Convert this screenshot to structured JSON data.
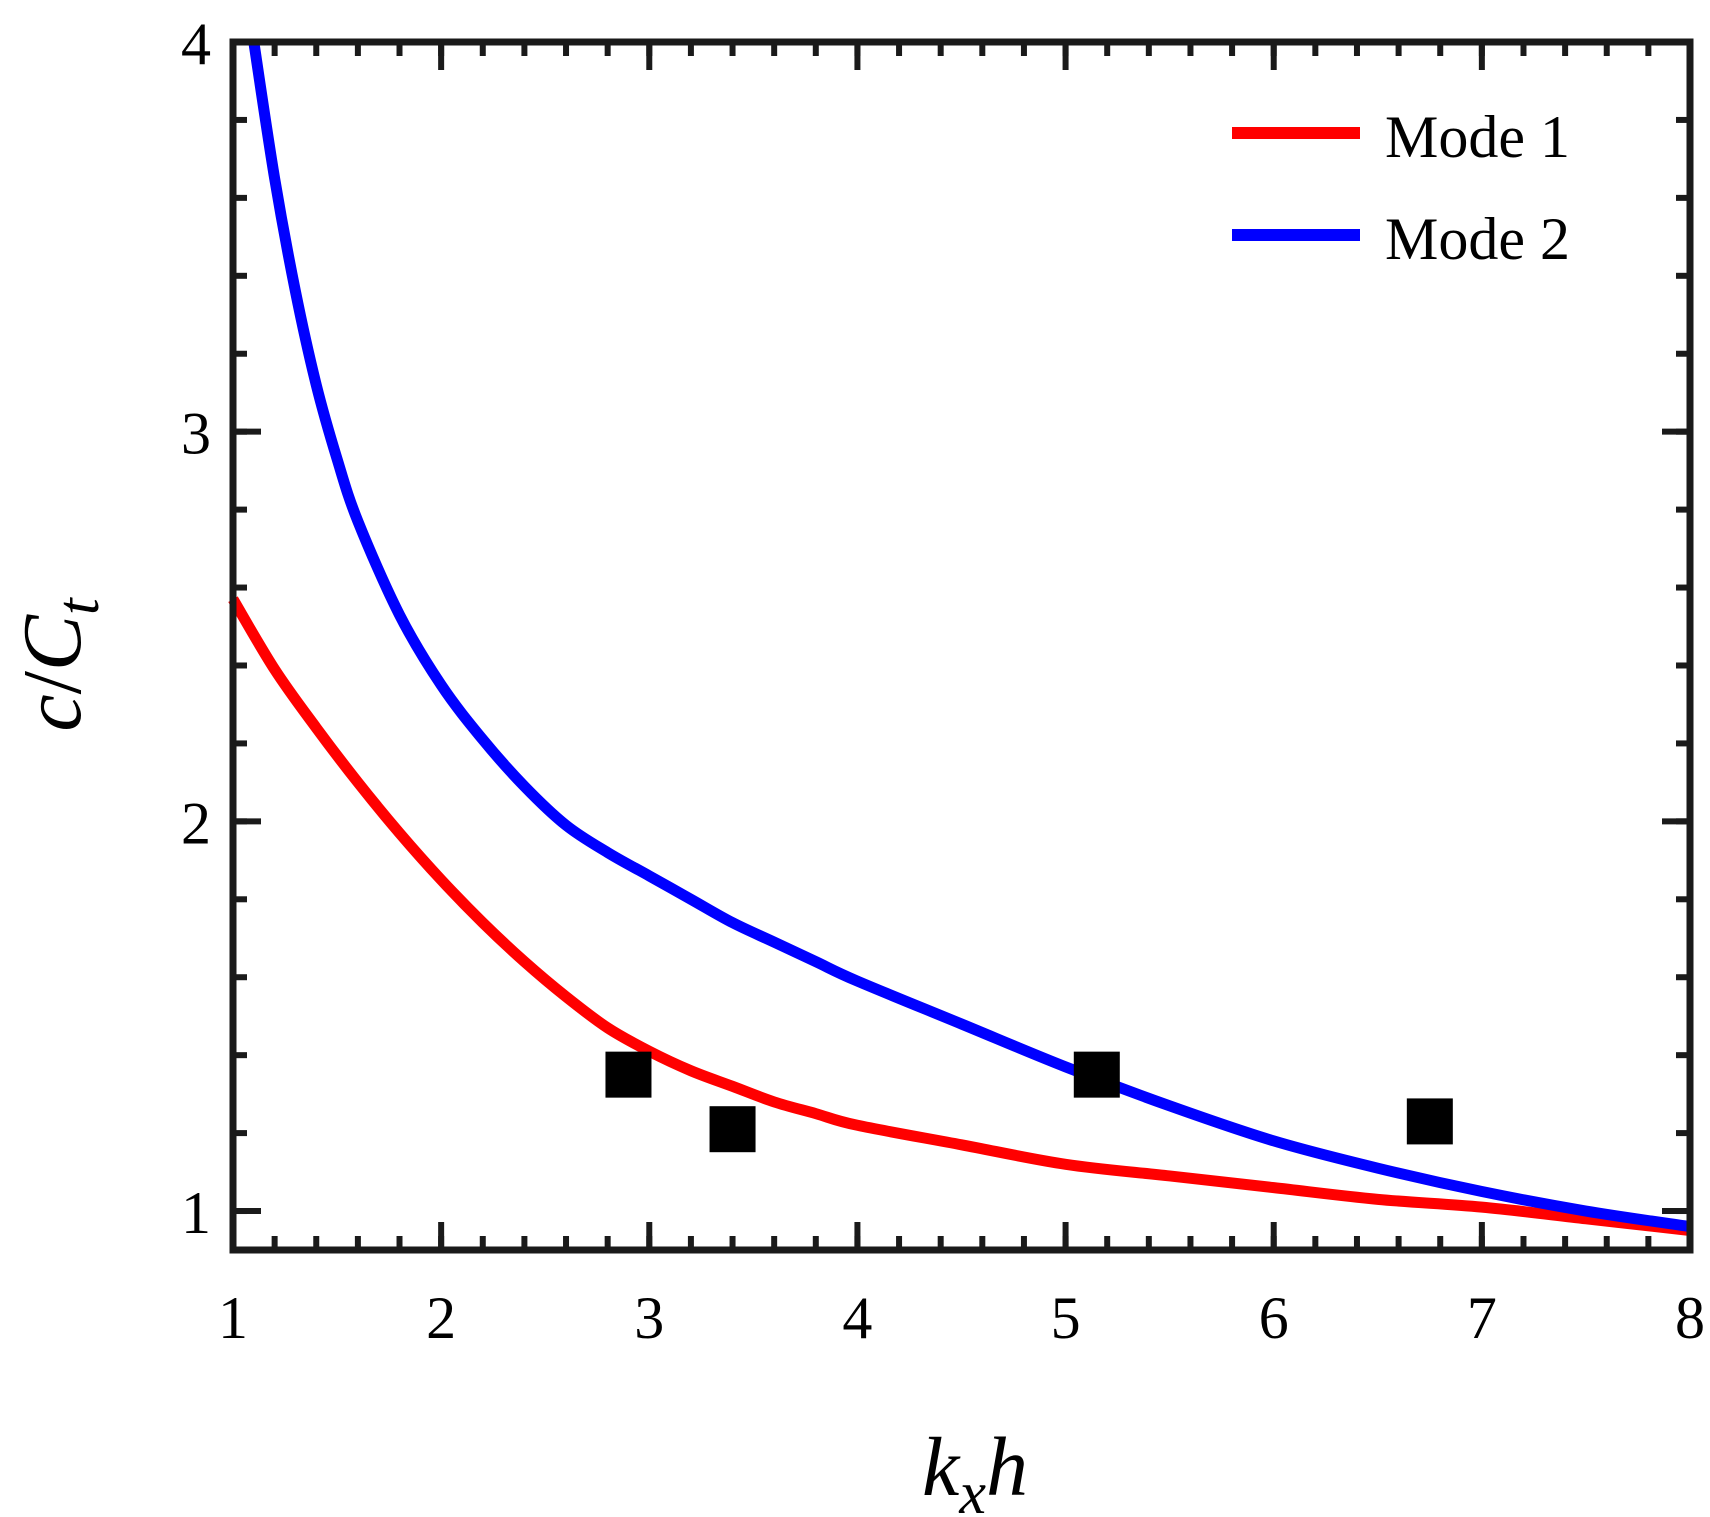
{
  "chart_data": {
    "type": "line",
    "title": "",
    "xlabel": {
      "main": "k",
      "sub": "x",
      "tail": "h"
    },
    "ylabel": {
      "main": "c",
      "slash": "/",
      "C": "C",
      "sub": "t"
    },
    "xlim": [
      1,
      8
    ],
    "ylim": [
      0.9,
      4
    ],
    "x_ticks": [
      1,
      2,
      3,
      4,
      5,
      6,
      7,
      8
    ],
    "y_ticks": [
      1,
      2,
      3,
      4
    ],
    "x_minor_step": 0.2,
    "y_minor_step": 0.2,
    "grid": false,
    "legend_position": "top-right",
    "series": [
      {
        "name": "Mode 1",
        "color": "#ff0000",
        "x": [
          1.0,
          1.2,
          1.4,
          1.6,
          1.8,
          2.0,
          2.2,
          2.4,
          2.6,
          2.8,
          3.0,
          3.2,
          3.4,
          3.6,
          3.8,
          4.0,
          4.5,
          5.0,
          5.5,
          6.0,
          6.5,
          7.0,
          7.5,
          8.0
        ],
        "y": [
          2.57,
          2.39,
          2.24,
          2.1,
          1.97,
          1.85,
          1.74,
          1.64,
          1.55,
          1.47,
          1.41,
          1.36,
          1.32,
          1.28,
          1.25,
          1.22,
          1.17,
          1.12,
          1.09,
          1.06,
          1.03,
          1.01,
          0.98,
          0.95
        ]
      },
      {
        "name": "Mode 2",
        "color": "#0000ff",
        "x": [
          1.1,
          1.2,
          1.3,
          1.4,
          1.5,
          1.6,
          1.8,
          2.0,
          2.2,
          2.4,
          2.6,
          2.8,
          3.0,
          3.2,
          3.4,
          3.6,
          3.8,
          4.0,
          4.5,
          5.0,
          5.5,
          6.0,
          6.5,
          7.0,
          7.5,
          8.0
        ],
        "y": [
          4.0,
          3.65,
          3.36,
          3.12,
          2.93,
          2.77,
          2.53,
          2.35,
          2.21,
          2.09,
          1.99,
          1.92,
          1.86,
          1.8,
          1.74,
          1.69,
          1.64,
          1.59,
          1.48,
          1.37,
          1.27,
          1.18,
          1.11,
          1.05,
          1.0,
          0.96
        ]
      }
    ],
    "points": {
      "marker": "square",
      "color": "#000000",
      "x": [
        2.9,
        3.4,
        5.15,
        6.75
      ],
      "y": [
        1.35,
        1.21,
        1.35,
        1.23
      ]
    }
  }
}
